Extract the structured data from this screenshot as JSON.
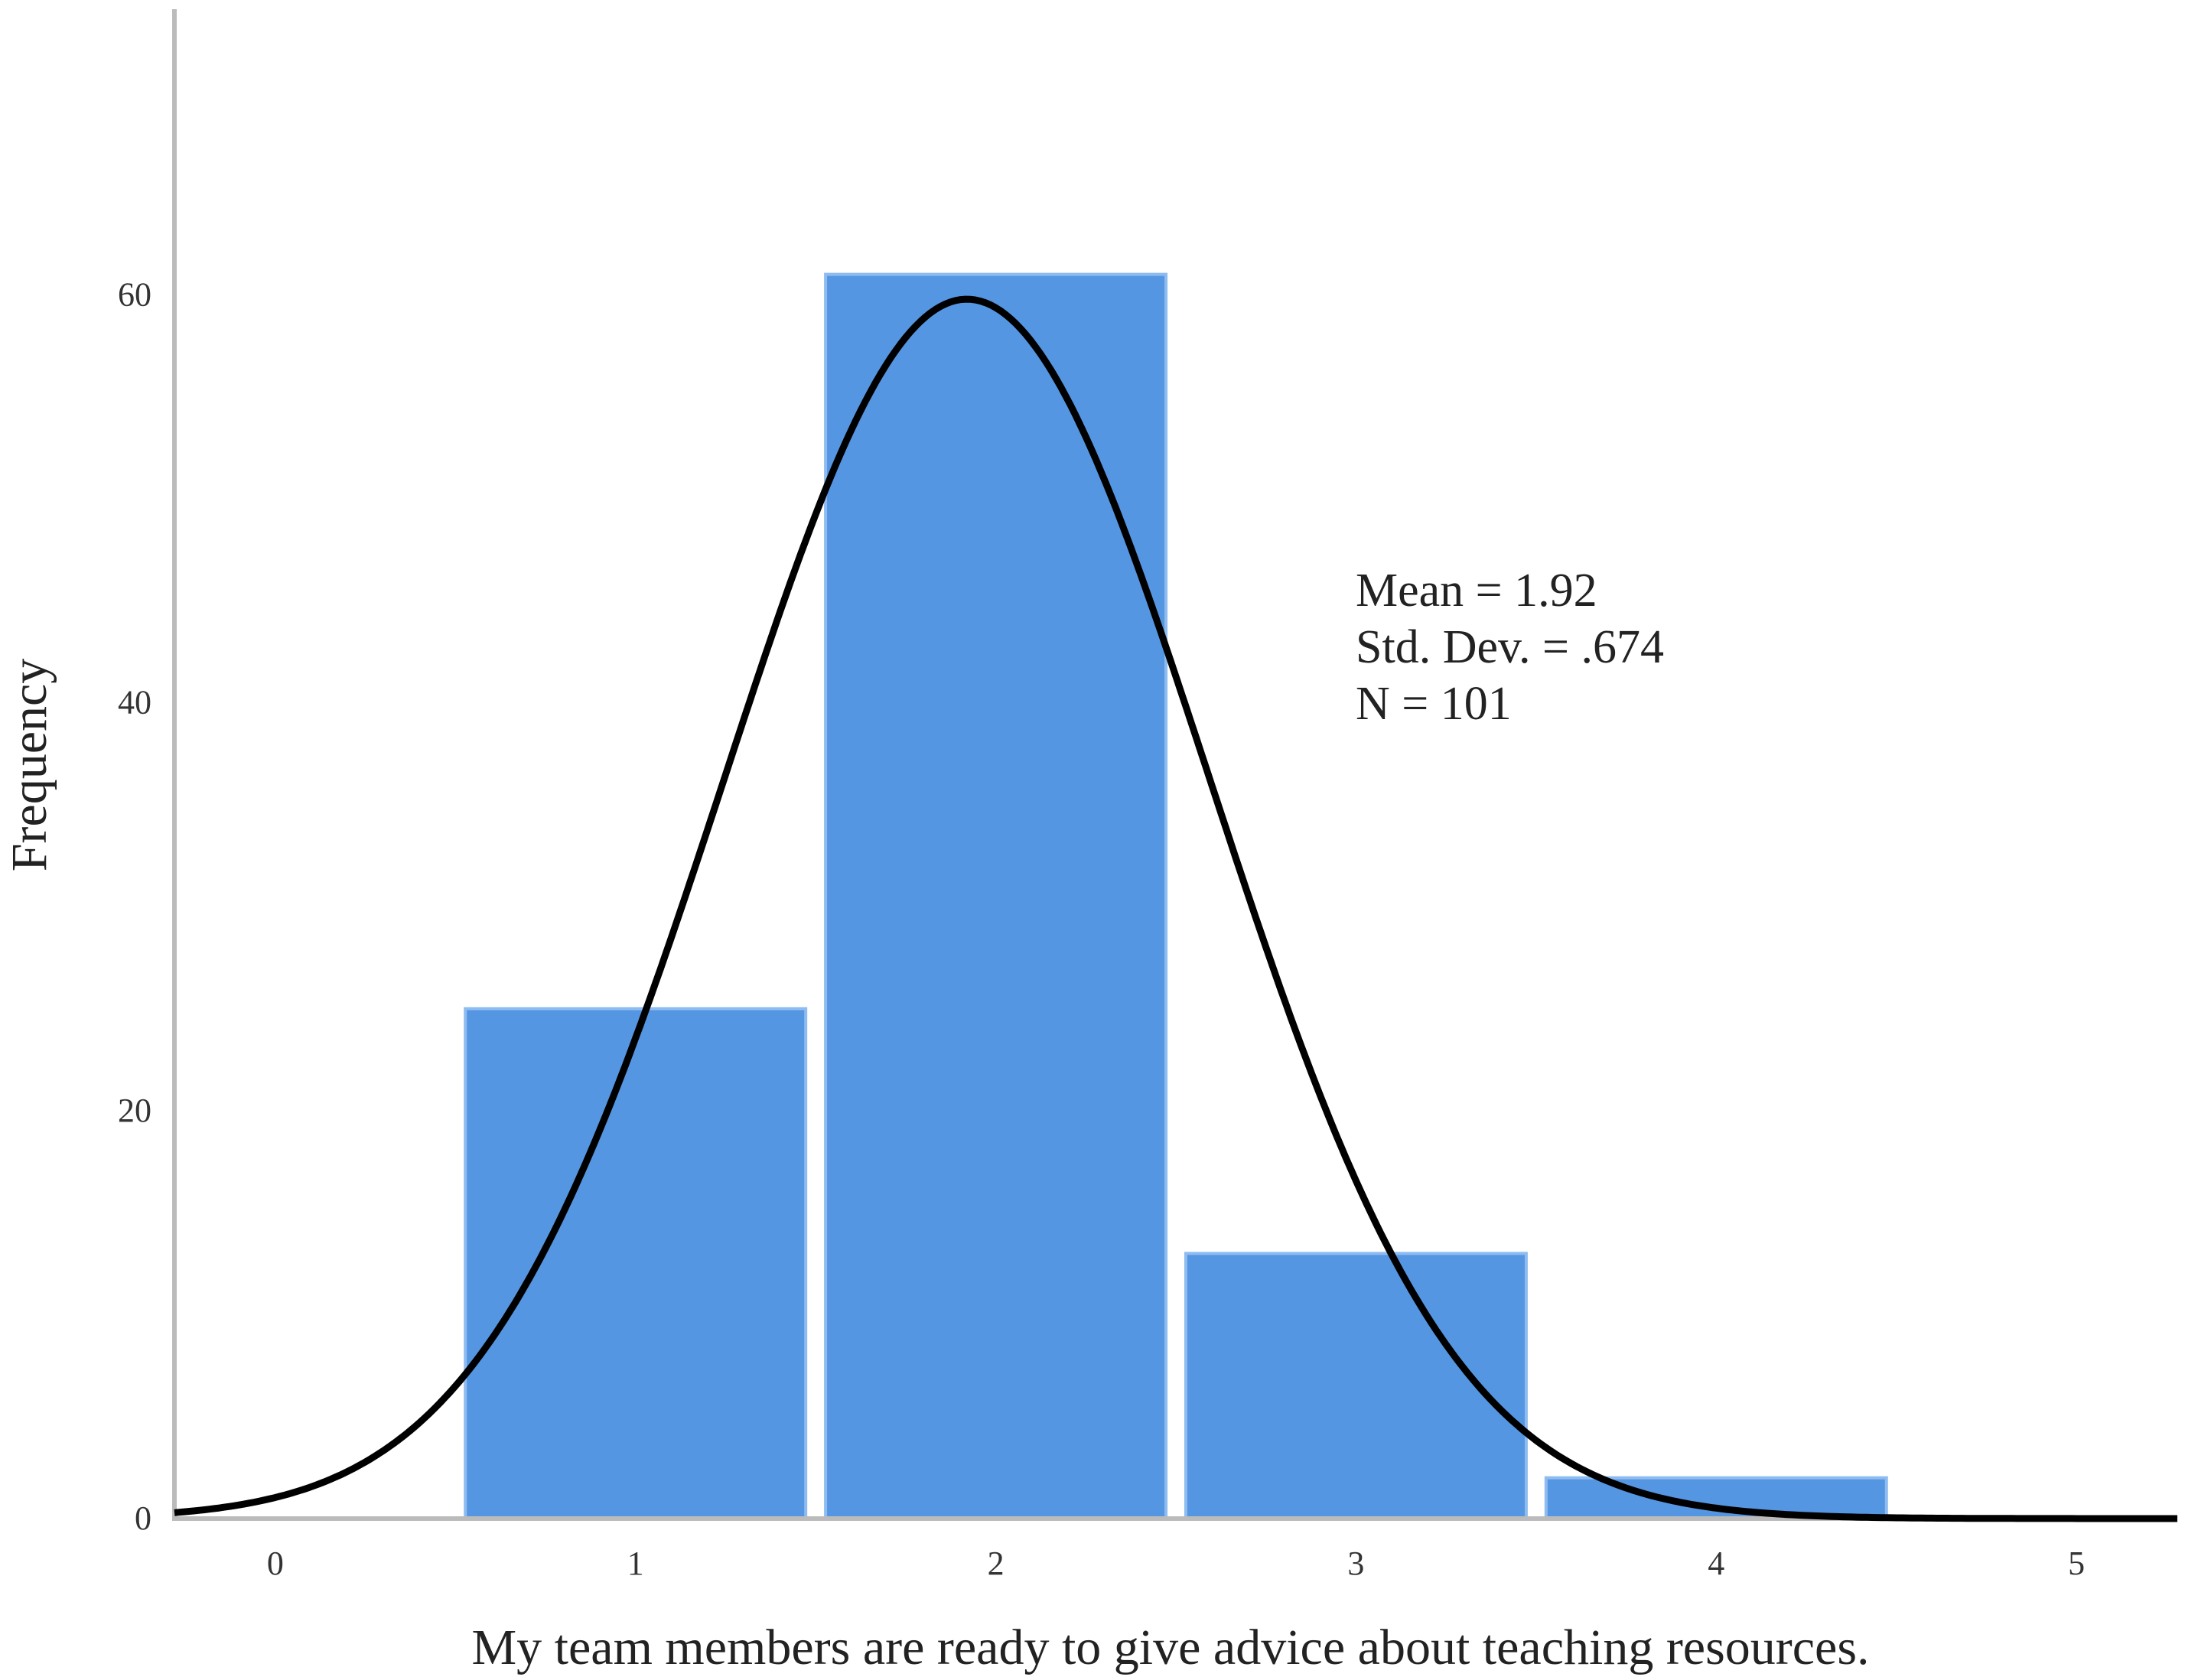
{
  "chart_data": {
    "type": "bar",
    "chart_subtype": "histogram",
    "xlabel": "My team members are ready to give advice about teaching resources.",
    "ylabel": "Frequency",
    "categories": [
      "1",
      "2",
      "3",
      "4"
    ],
    "bins": [
      {
        "center": 1,
        "value": 25
      },
      {
        "center": 2,
        "value": 61
      },
      {
        "center": 3,
        "value": 13
      },
      {
        "center": 4,
        "value": 2
      }
    ],
    "x_ticks": [
      "0",
      "1",
      "2",
      "3",
      "4",
      "5"
    ],
    "y_ticks": [
      "0",
      "20",
      "40",
      "60"
    ],
    "xlim": [
      -0.28,
      5.28
    ],
    "ylim": [
      0,
      74
    ],
    "stats": {
      "mean": "Mean = 1.92",
      "std_dev": "Std. Dev. = .674",
      "n": "N = 101"
    },
    "normal_curve": {
      "mean": 1.92,
      "sd": 0.674,
      "n": 101,
      "bin_width": 1
    },
    "colors": {
      "bar": "#5596E3",
      "curve": "#000000",
      "axis": "#BBBBBB"
    },
    "grid": false,
    "legend": "none"
  }
}
